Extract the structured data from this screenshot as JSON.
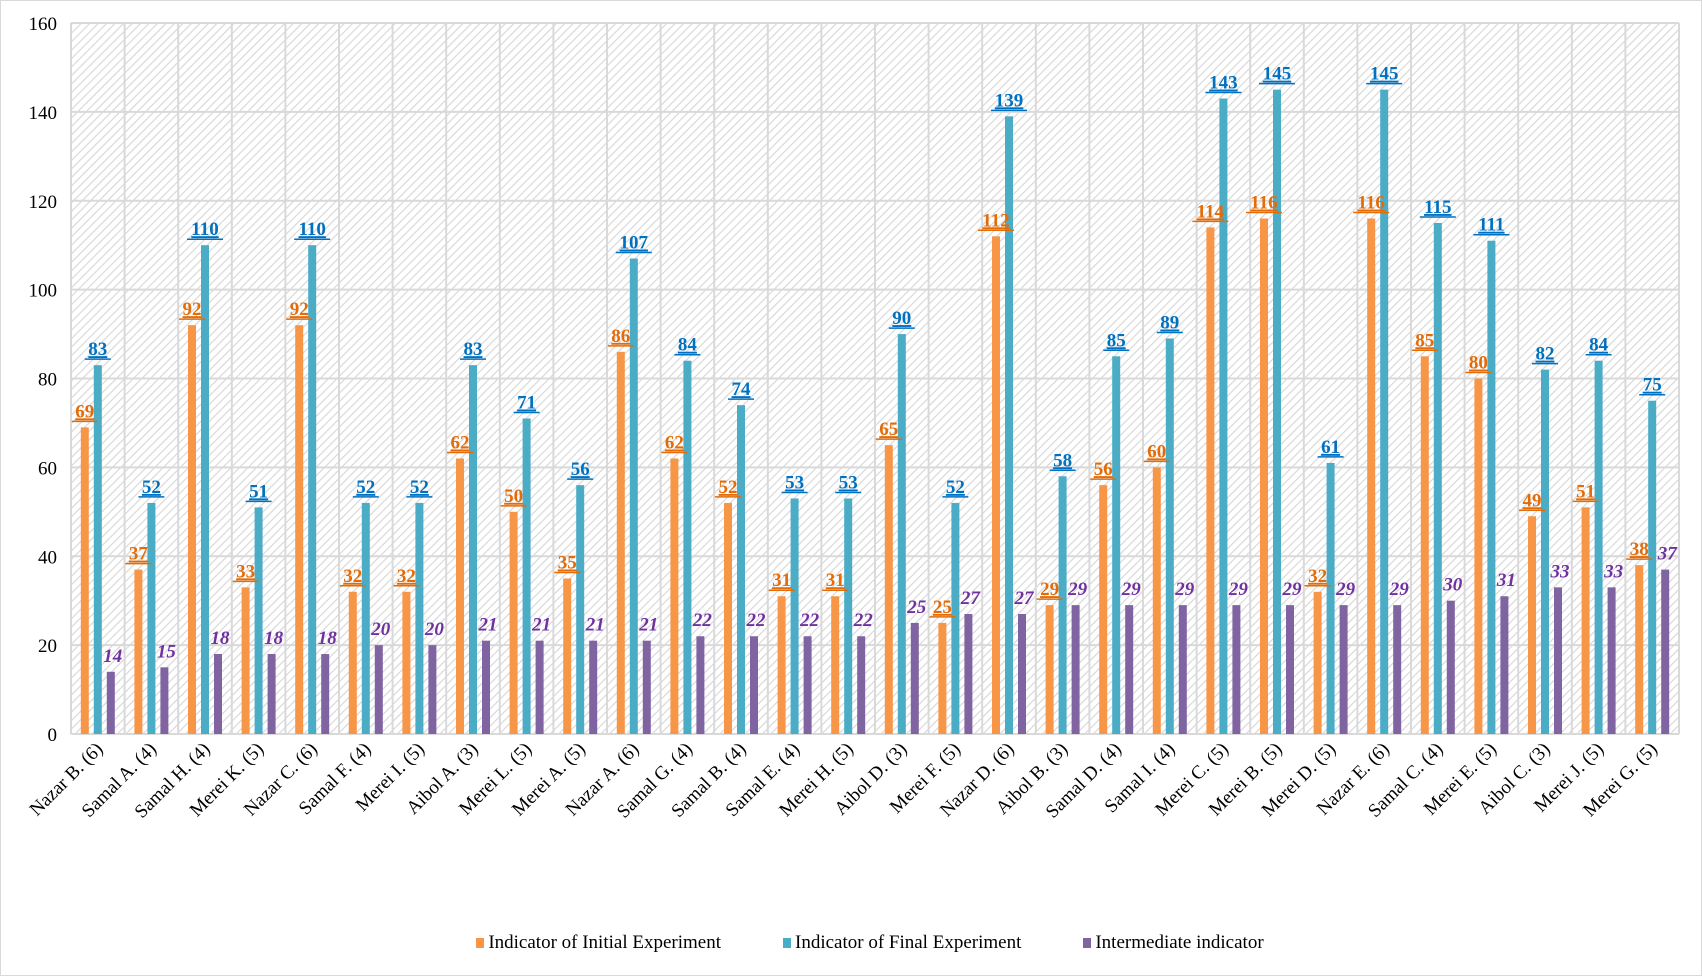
{
  "chart_data": {
    "type": "bar",
    "title": "",
    "xlabel": "",
    "ylabel": "",
    "ylim": [
      0,
      160
    ],
    "yticks": [
      0,
      20,
      40,
      60,
      80,
      100,
      120,
      140,
      160
    ],
    "grid": true,
    "legend_position": "bottom",
    "categories": [
      "Nazar B. (6)",
      "Samal A. (4)",
      "Samal H. (4)",
      "Merei K. (5)",
      "Nazar C. (6)",
      "Samal F. (4)",
      "Merei I. (5)",
      "Aibol A. (3)",
      "Merei L. (5)",
      "Merei A. (5)",
      "Nazar A. (6)",
      "Samal G. (4)",
      "Samal B. (4)",
      "Samal E. (4)",
      "Merei H. (5)",
      "Aibol D. (3)",
      "Merei F. (5)",
      "Nazar D. (6)",
      "Aibol B. (3)",
      "Samal D. (4)",
      "Samal I. (4)",
      "Merei C. (5)",
      "Merei B. (5)",
      "Merei D. (5)",
      "Nazar E. (6)",
      "Samal C. (4)",
      "Merei E. (5)",
      "Aibol C. (3)",
      "Merei J. (5)",
      "Merei G. (5)"
    ],
    "series": [
      {
        "name": "Indicator of Initial Experiment",
        "color": "#f79646",
        "label_color": "#e36c09",
        "values": [
          69,
          37,
          92,
          33,
          92,
          32,
          32,
          62,
          50,
          35,
          86,
          62,
          52,
          31,
          31,
          65,
          25,
          112,
          29,
          56,
          60,
          114,
          116,
          32,
          116,
          85,
          80,
          49,
          51,
          38
        ]
      },
      {
        "name": "Indicator of Final Experiment",
        "color": "#4bacc6",
        "label_color": "#0070c0",
        "values": [
          83,
          52,
          110,
          51,
          110,
          52,
          52,
          83,
          71,
          56,
          107,
          84,
          74,
          53,
          53,
          90,
          52,
          139,
          58,
          85,
          89,
          143,
          145,
          61,
          145,
          115,
          111,
          82,
          84,
          75
        ]
      },
      {
        "name": "Intermediate indicator",
        "color": "#8064a2",
        "label_color": "#7030a0",
        "values": [
          14,
          15,
          18,
          18,
          18,
          20,
          20,
          21,
          21,
          21,
          21,
          22,
          22,
          22,
          22,
          25,
          27,
          27,
          29,
          29,
          29,
          29,
          29,
          29,
          29,
          30,
          31,
          33,
          33,
          37
        ]
      }
    ]
  }
}
